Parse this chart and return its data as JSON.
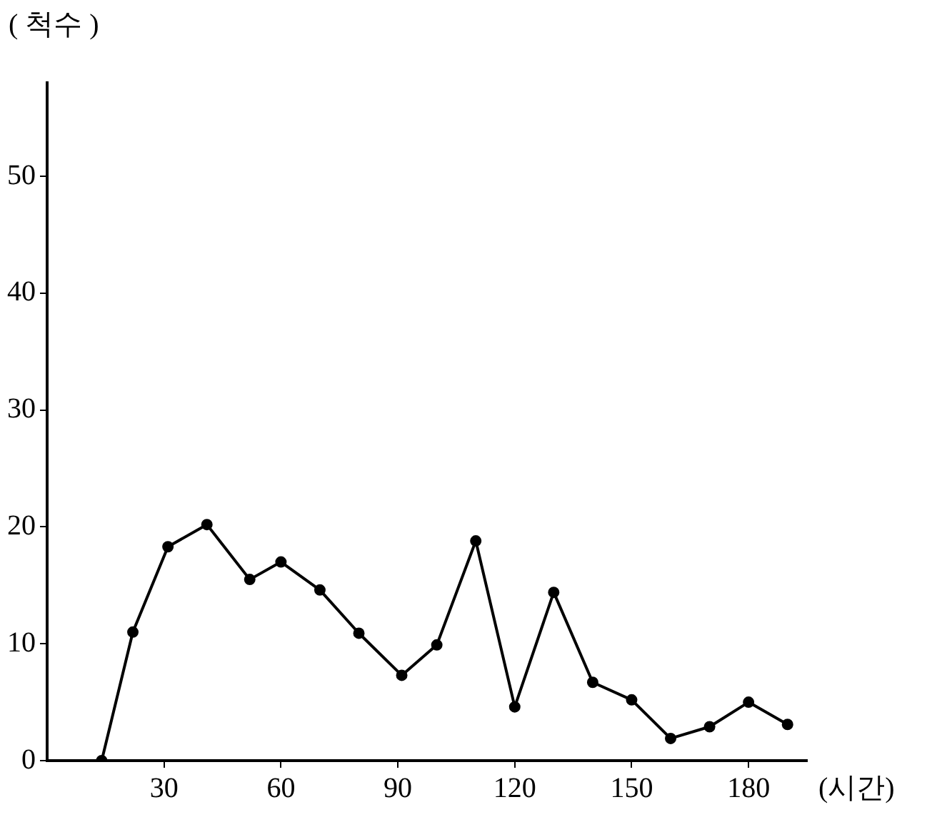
{
  "chart_data": {
    "type": "line",
    "ylabel": "( 척수 )",
    "xlabel": "(시간)",
    "x": [
      14,
      22,
      31,
      41,
      52,
      60,
      70,
      80,
      91,
      100,
      110,
      120,
      130,
      140,
      150,
      160,
      170,
      180,
      190
    ],
    "series": [
      {
        "color": "#000000",
        "values": [
          0,
          11,
          18.3,
          20.2,
          15.5,
          17,
          14.6,
          10.9,
          7.3,
          9.9,
          18.8,
          4.6,
          14.4,
          6.7,
          5.2,
          1.9,
          2.9,
          5,
          3.1
        ]
      }
    ],
    "xlim": [
      0,
      195
    ],
    "xticks": [
      30,
      60,
      90,
      120,
      150,
      180
    ],
    "ylim": [
      0,
      58
    ],
    "yticks": [
      0,
      10,
      20,
      30,
      40,
      50
    ],
    "marker": "circle",
    "legend": false
  }
}
